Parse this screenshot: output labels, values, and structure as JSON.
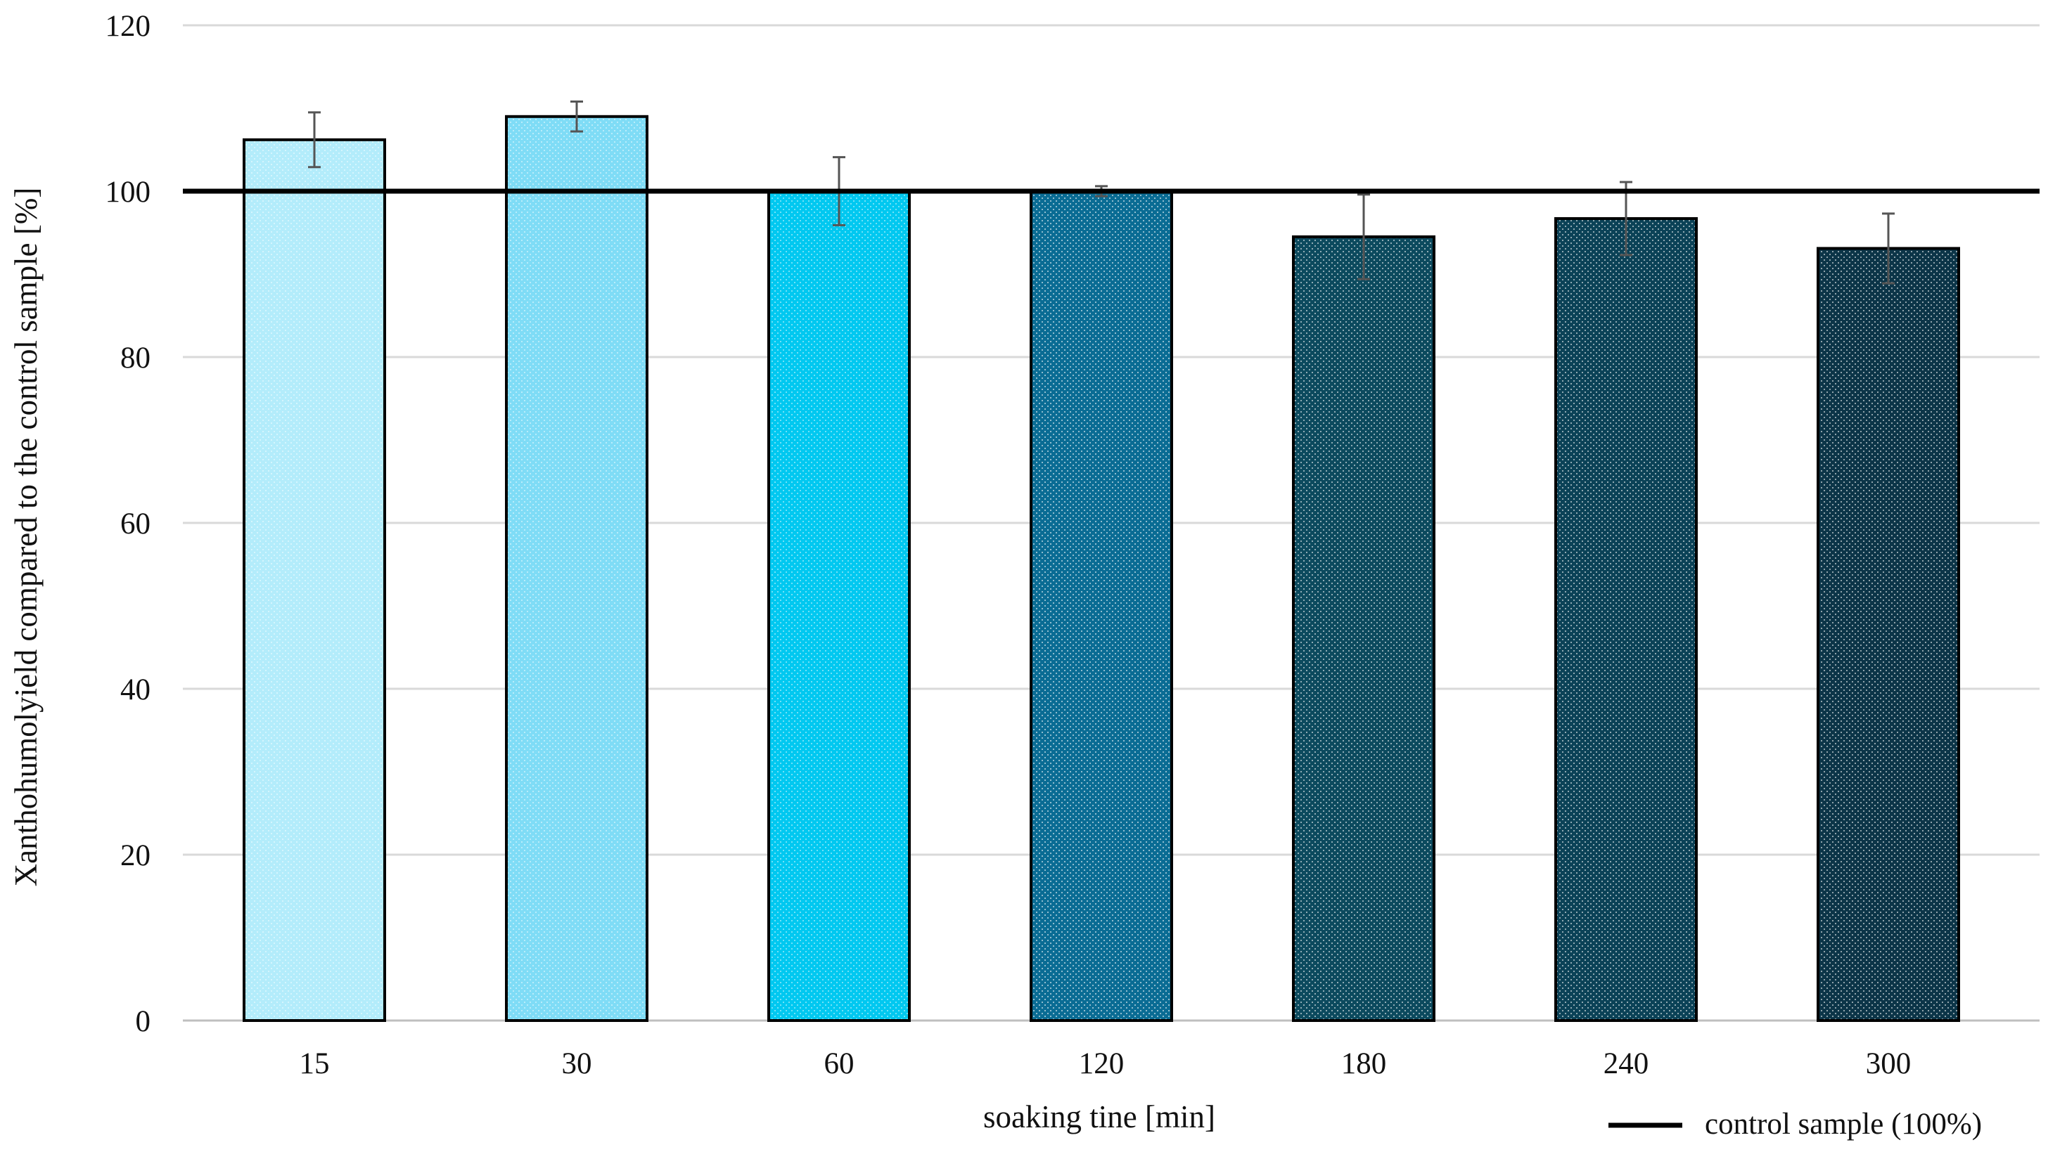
{
  "chart_data": {
    "type": "bar",
    "xlabel": "soaking tine [min]",
    "ylabel": "Xanthohumolyield compared to the control sample [%]",
    "ylim": [
      0,
      120
    ],
    "yticks": [
      "0",
      "20",
      "40",
      "60",
      "80",
      "100",
      "120"
    ],
    "categories": [
      "15",
      "30",
      "60",
      "120",
      "180",
      "240",
      "300"
    ],
    "values": [
      106.2,
      109.0,
      100.0,
      100.0,
      94.5,
      96.7,
      93.1
    ],
    "error": [
      3.3,
      1.8,
      4.1,
      0.6,
      5.1,
      4.4,
      4.2
    ],
    "bar_colors": [
      "#b3ecfb",
      "#7fdcf6",
      "#00c8f0",
      "#0a6c94",
      "#0c4a5e",
      "#0b4257",
      "#0c3548"
    ],
    "reference_line": {
      "value": 100,
      "color": "#000000",
      "label": "control sample (100%)"
    },
    "grid": true,
    "legend_position": "bottom-right"
  }
}
